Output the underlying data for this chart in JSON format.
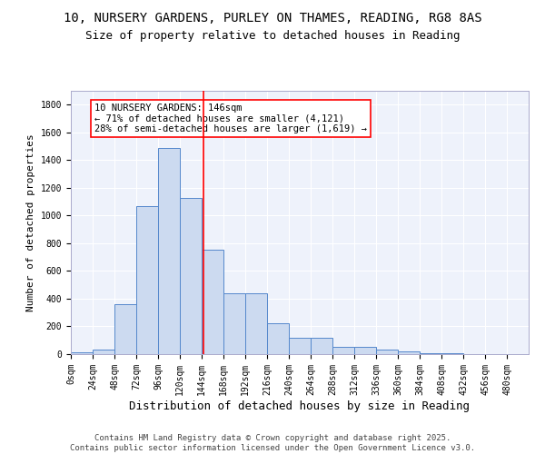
{
  "title_line1": "10, NURSERY GARDENS, PURLEY ON THAMES, READING, RG8 8AS",
  "title_line2": "Size of property relative to detached houses in Reading",
  "xlabel": "Distribution of detached houses by size in Reading",
  "ylabel": "Number of detached properties",
  "bar_values": [
    10,
    35,
    360,
    1070,
    1490,
    1125,
    755,
    440,
    440,
    225,
    115,
    115,
    55,
    50,
    30,
    20,
    5,
    5,
    2,
    1,
    0
  ],
  "bin_edges": [
    0,
    24,
    48,
    72,
    96,
    120,
    144,
    168,
    192,
    216,
    240,
    264,
    288,
    312,
    336,
    360,
    384,
    408,
    432,
    456,
    480,
    504
  ],
  "property_size": 146,
  "annotation_text": "10 NURSERY GARDENS: 146sqm\n← 71% of detached houses are smaller (4,121)\n28% of semi-detached houses are larger (1,619) →",
  "vline_x": 146,
  "bar_color": "#ccdaf0",
  "bar_edge_color": "#5588cc",
  "vline_color": "red",
  "annotation_box_color": "red",
  "background_color": "#eef2fb",
  "grid_color": "#ffffff",
  "ylim": [
    0,
    1900
  ],
  "yticks": [
    0,
    200,
    400,
    600,
    800,
    1000,
    1200,
    1400,
    1600,
    1800
  ],
  "footer_text": "Contains HM Land Registry data © Crown copyright and database right 2025.\nContains public sector information licensed under the Open Government Licence v3.0.",
  "title_fontsize": 10,
  "subtitle_fontsize": 9,
  "xlabel_fontsize": 9,
  "ylabel_fontsize": 8,
  "tick_fontsize": 7,
  "annotation_fontsize": 7.5,
  "footer_fontsize": 6.5
}
